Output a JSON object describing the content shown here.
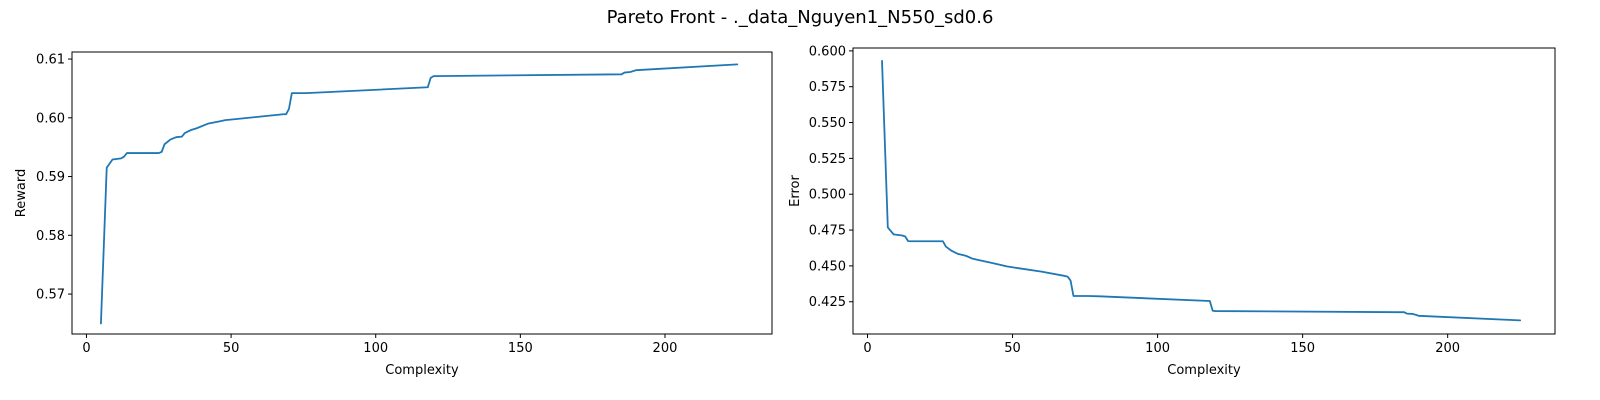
{
  "figure": {
    "suptitle": "Pareto Front - ._data_Nguyen1_N550_sd0.6",
    "line_color": "#1f77b4"
  },
  "chart_data": [
    {
      "type": "line",
      "title": "",
      "xlabel": "Complexity",
      "ylabel": "Reward",
      "xlim": [
        -5,
        237
      ],
      "ylim": [
        0.5632,
        0.6112
      ],
      "xticks": [
        0,
        50,
        100,
        150,
        200
      ],
      "yticks": [
        0.57,
        0.58,
        0.59,
        0.6,
        0.61
      ],
      "ytick_labels": [
        "0.57",
        "0.58",
        "0.59",
        "0.60",
        "0.61"
      ],
      "grid": false,
      "series": [
        {
          "x": [
            5,
            7,
            9,
            12,
            13,
            14,
            15,
            20,
            25,
            26,
            27,
            29,
            31,
            33,
            34,
            36,
            38,
            42,
            46,
            48,
            52,
            60,
            68,
            69,
            70,
            71,
            76,
            118,
            119,
            120,
            185,
            186,
            188,
            190,
            225
          ],
          "y": [
            0.565,
            0.5915,
            0.5929,
            0.5931,
            0.5934,
            0.594,
            0.594,
            0.594,
            0.594,
            0.5942,
            0.5955,
            0.5963,
            0.5967,
            0.5968,
            0.5974,
            0.5979,
            0.5982,
            0.599,
            0.5994,
            0.5996,
            0.5998,
            0.6002,
            0.6006,
            0.6006,
            0.6015,
            0.6042,
            0.6042,
            0.6052,
            0.6068,
            0.6071,
            0.6074,
            0.6077,
            0.6078,
            0.6081,
            0.6091
          ]
        }
      ]
    },
    {
      "type": "line",
      "title": "",
      "xlabel": "Complexity",
      "ylabel": "Error",
      "xlim": [
        -5,
        237
      ],
      "ylim": [
        0.4025,
        0.602
      ],
      "xticks": [
        0,
        50,
        100,
        150,
        200
      ],
      "yticks": [
        0.425,
        0.45,
        0.475,
        0.5,
        0.525,
        0.55,
        0.575,
        0.6
      ],
      "ytick_labels": [
        "0.425",
        "0.450",
        "0.475",
        "0.500",
        "0.525",
        "0.550",
        "0.575",
        "0.600"
      ],
      "grid": false,
      "series": [
        {
          "x": [
            5,
            7,
            9,
            12,
            13,
            14,
            15,
            20,
            25,
            26,
            27,
            29,
            31,
            33,
            34,
            36,
            38,
            42,
            46,
            48,
            52,
            60,
            68,
            69,
            70,
            71,
            76,
            80,
            118,
            119,
            120,
            185,
            186,
            188,
            190,
            225
          ],
          "y": [
            0.593,
            0.4768,
            0.472,
            0.4712,
            0.4705,
            0.4673,
            0.4672,
            0.4672,
            0.4672,
            0.4672,
            0.4635,
            0.4605,
            0.4585,
            0.4575,
            0.457,
            0.4552,
            0.4542,
            0.4525,
            0.4506,
            0.4497,
            0.4484,
            0.446,
            0.443,
            0.4425,
            0.4398,
            0.429,
            0.429,
            0.4288,
            0.4255,
            0.4187,
            0.4185,
            0.4177,
            0.4167,
            0.4165,
            0.4152,
            0.412
          ]
        }
      ]
    }
  ]
}
